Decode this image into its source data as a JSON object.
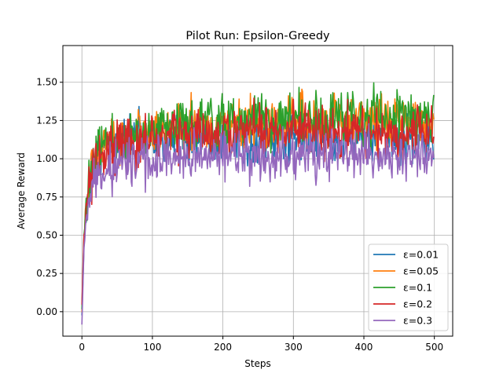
{
  "chart_data": {
    "type": "line",
    "title": "Pilot Run: Epsilon-Greedy",
    "xlabel": "Steps",
    "ylabel": "Average Reward",
    "xlim": [
      -27,
      526
    ],
    "ylim": [
      -0.16,
      1.74
    ],
    "xticks": [
      0,
      100,
      200,
      300,
      400,
      500
    ],
    "yticks": [
      0.0,
      0.25,
      0.5,
      0.75,
      1.0,
      1.25,
      1.5
    ],
    "ytick_labels": [
      "0.00",
      "0.25",
      "0.50",
      "0.75",
      "1.00",
      "1.25",
      "1.50"
    ],
    "grid": true,
    "legend_position": "lower right",
    "x_range": [
      0,
      499
    ],
    "series": [
      {
        "name": "ε=0.01",
        "color": "#1f77b4",
        "plateau": 1.13,
        "spread": 0.14,
        "start": -0.02,
        "knots": [
          [
            0,
            -0.02
          ],
          [
            3,
            0.45
          ],
          [
            6,
            0.62
          ],
          [
            10,
            0.78
          ],
          [
            15,
            0.92
          ],
          [
            20,
            0.98
          ],
          [
            30,
            1.04
          ],
          [
            40,
            1.08
          ],
          [
            50,
            1.12
          ],
          [
            60,
            1.14
          ],
          [
            80,
            1.15
          ],
          [
            100,
            1.12
          ],
          [
            150,
            1.14
          ],
          [
            200,
            1.13
          ],
          [
            300,
            1.12
          ],
          [
            400,
            1.13
          ],
          [
            499,
            1.12
          ]
        ]
      },
      {
        "name": "ε=0.05",
        "color": "#ff7f0e",
        "plateau": 1.26,
        "spread": 0.15,
        "start": 0.0,
        "knots": [
          [
            0,
            0.0
          ],
          [
            3,
            0.48
          ],
          [
            6,
            0.66
          ],
          [
            10,
            0.8
          ],
          [
            15,
            0.93
          ],
          [
            20,
            1.0
          ],
          [
            30,
            1.06
          ],
          [
            50,
            1.12
          ],
          [
            80,
            1.16
          ],
          [
            100,
            1.18
          ],
          [
            150,
            1.2
          ],
          [
            200,
            1.22
          ],
          [
            300,
            1.25
          ],
          [
            400,
            1.27
          ],
          [
            499,
            1.25
          ]
        ]
      },
      {
        "name": "ε=0.1",
        "color": "#2ca02c",
        "plateau": 1.27,
        "spread": 0.16,
        "start": 0.02,
        "knots": [
          [
            0,
            0.02
          ],
          [
            3,
            0.5
          ],
          [
            6,
            0.68
          ],
          [
            10,
            0.82
          ],
          [
            15,
            0.94
          ],
          [
            20,
            1.01
          ],
          [
            30,
            1.07
          ],
          [
            50,
            1.13
          ],
          [
            80,
            1.17
          ],
          [
            100,
            1.19
          ],
          [
            150,
            1.22
          ],
          [
            200,
            1.24
          ],
          [
            300,
            1.26
          ],
          [
            400,
            1.27
          ],
          [
            499,
            1.27
          ]
        ]
      },
      {
        "name": "ε=0.2",
        "color": "#d62728",
        "plateau": 1.18,
        "spread": 0.16,
        "start": 0.05,
        "knots": [
          [
            0,
            0.05
          ],
          [
            3,
            0.52
          ],
          [
            6,
            0.66
          ],
          [
            10,
            0.8
          ],
          [
            15,
            0.92
          ],
          [
            20,
            0.98
          ],
          [
            30,
            1.04
          ],
          [
            50,
            1.09
          ],
          [
            80,
            1.12
          ],
          [
            100,
            1.14
          ],
          [
            150,
            1.16
          ],
          [
            200,
            1.17
          ],
          [
            300,
            1.18
          ],
          [
            400,
            1.18
          ],
          [
            499,
            1.18
          ]
        ]
      },
      {
        "name": "ε=0.3",
        "color": "#9467bd",
        "plateau": 1.02,
        "spread": 0.15,
        "start": -0.08,
        "knots": [
          [
            0,
            -0.08
          ],
          [
            3,
            0.4
          ],
          [
            6,
            0.58
          ],
          [
            10,
            0.72
          ],
          [
            15,
            0.82
          ],
          [
            20,
            0.88
          ],
          [
            30,
            0.92
          ],
          [
            50,
            0.96
          ],
          [
            80,
            0.99
          ],
          [
            100,
            1.0
          ],
          [
            150,
            1.01
          ],
          [
            200,
            1.02
          ],
          [
            300,
            1.02
          ],
          [
            400,
            1.02
          ],
          [
            499,
            1.02
          ]
        ]
      }
    ]
  }
}
